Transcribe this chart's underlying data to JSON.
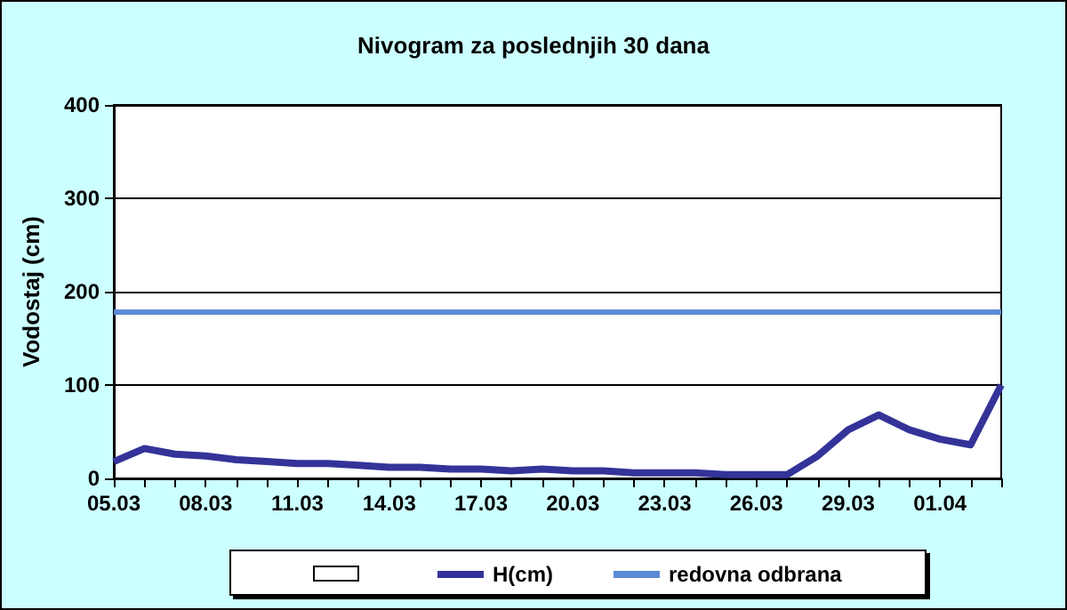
{
  "chart_data": {
    "type": "line",
    "title": "Nivogram za poslednjih 30 dana",
    "ylabel": "Vodostaj (cm)",
    "categories": [
      "05.03",
      null,
      null,
      "08.03",
      null,
      null,
      "11.03",
      null,
      null,
      "14.03",
      null,
      null,
      "17.03",
      null,
      null,
      "20.03",
      null,
      null,
      "23.03",
      null,
      null,
      "26.03",
      null,
      null,
      "29.03",
      null,
      null,
      "01.04",
      null,
      null
    ],
    "series": [
      {
        "name": "H(cm)",
        "color": "#333399",
        "values": [
          18,
          32,
          26,
          24,
          20,
          18,
          16,
          16,
          14,
          12,
          12,
          10,
          10,
          8,
          10,
          8,
          8,
          6,
          6,
          6,
          4,
          4,
          4,
          24,
          52,
          68,
          52,
          42,
          36,
          100
        ]
      }
    ],
    "ylim": [
      0,
      400
    ],
    "yticks": [
      0,
      100,
      200,
      300,
      400
    ],
    "grid": "y",
    "legend": "bottom",
    "marker": "none",
    "line_style": "solid",
    "ref_lines": [
      {
        "axis": "y",
        "value": 178,
        "label": "redovna odbrana",
        "color": "#5b8ad6"
      }
    ]
  }
}
